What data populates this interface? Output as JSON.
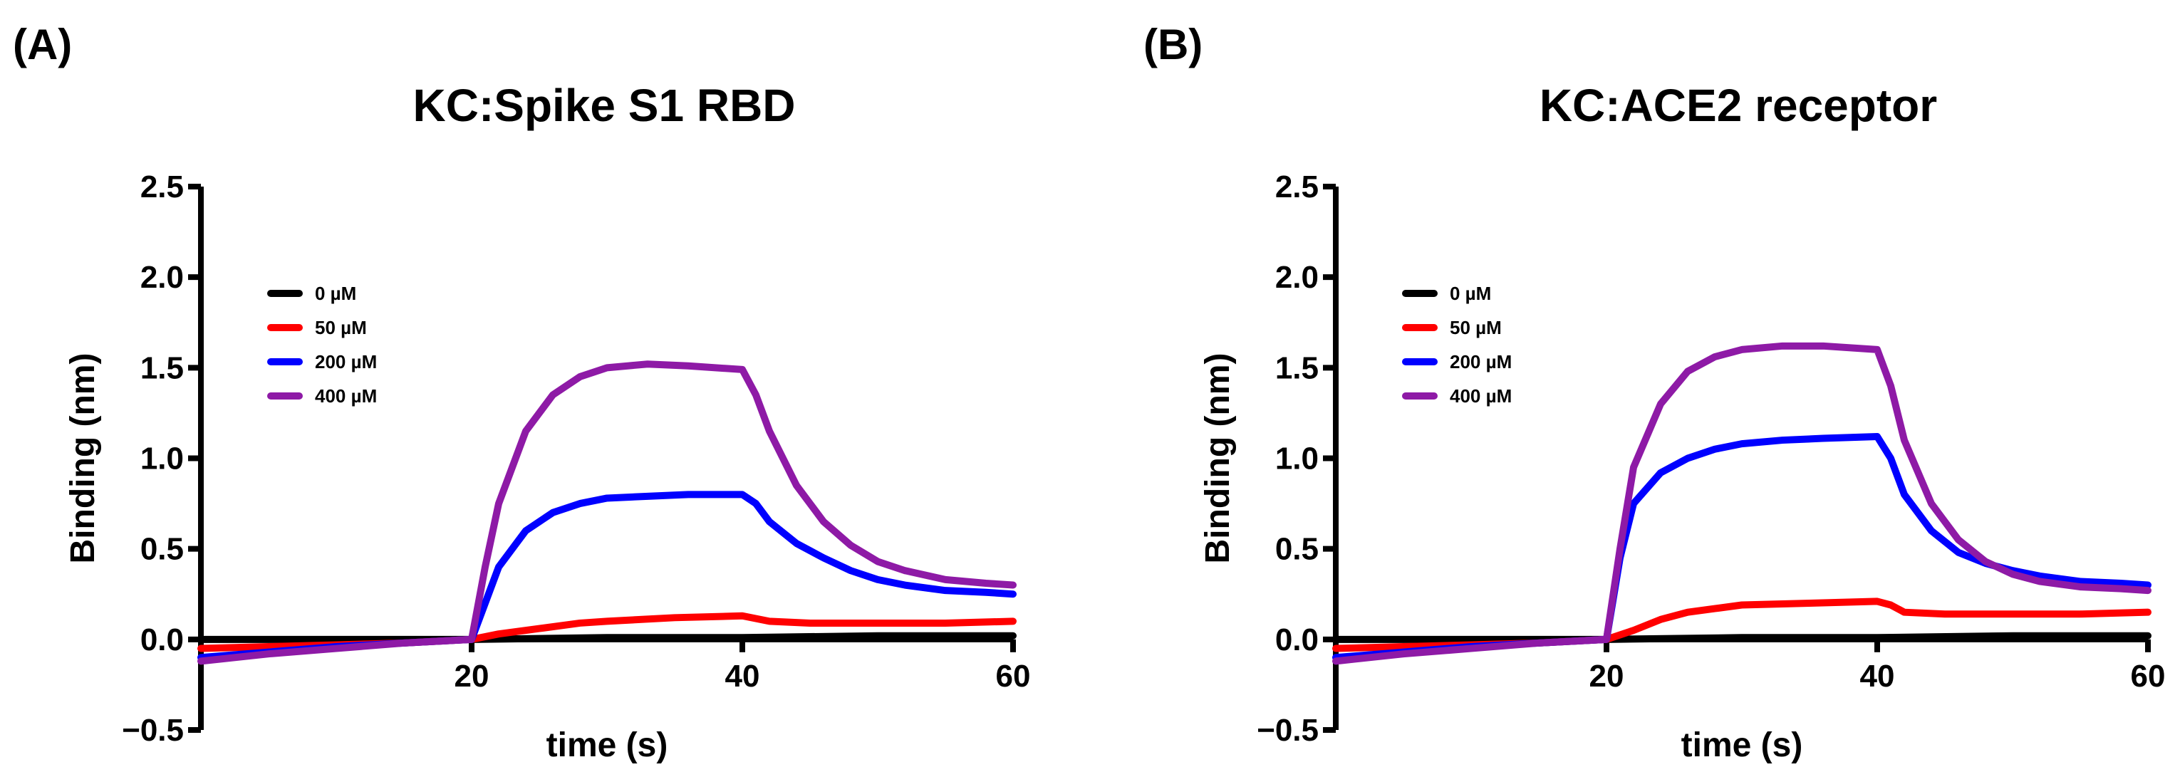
{
  "panel_labels": [
    "(A)",
    "(B)"
  ],
  "colors": {
    "0 µM": "#000000",
    "50 µM": "#ff0000",
    "200 µM": "#0000ff",
    "400 µM": "#8e1aa6"
  },
  "chart_data": [
    {
      "type": "line",
      "title": "KC:Spike S1 RBD",
      "xlabel": "time (s)",
      "ylabel": "Binding (nm)",
      "xlim": [
        0,
        60
      ],
      "ylim": [
        -0.5,
        2.5
      ],
      "xticks": [
        20,
        40,
        60
      ],
      "yticks": [
        -0.5,
        0.0,
        0.5,
        1.0,
        1.5,
        2.0,
        2.5
      ],
      "ytick_labels": [
        "−0.5",
        "0.0",
        "0.5",
        "1.0",
        "1.5",
        "2.0",
        "2.5"
      ],
      "legend": "top-left",
      "series": [
        {
          "name": "0 µM",
          "x": [
            0,
            10,
            20,
            30,
            40,
            50,
            60
          ],
          "y": [
            0.0,
            0.0,
            0.0,
            0.01,
            0.01,
            0.02,
            0.02
          ]
        },
        {
          "name": "50 µM",
          "x": [
            0,
            5,
            10,
            15,
            20,
            22,
            25,
            28,
            30,
            35,
            40,
            42,
            45,
            50,
            55,
            60
          ],
          "y": [
            -0.05,
            -0.04,
            -0.03,
            -0.02,
            0.0,
            0.03,
            0.06,
            0.09,
            0.1,
            0.12,
            0.13,
            0.1,
            0.09,
            0.09,
            0.09,
            0.1
          ]
        },
        {
          "name": "200 µM",
          "x": [
            0,
            5,
            10,
            15,
            20,
            21,
            22,
            24,
            26,
            28,
            30,
            33,
            36,
            40,
            41,
            42,
            44,
            46,
            48,
            50,
            52,
            55,
            58,
            60
          ],
          "y": [
            -0.1,
            -0.07,
            -0.04,
            -0.02,
            0.0,
            0.2,
            0.4,
            0.6,
            0.7,
            0.75,
            0.78,
            0.79,
            0.8,
            0.8,
            0.75,
            0.65,
            0.53,
            0.45,
            0.38,
            0.33,
            0.3,
            0.27,
            0.26,
            0.25
          ]
        },
        {
          "name": "400 µM",
          "x": [
            0,
            5,
            10,
            15,
            20,
            21,
            22,
            24,
            26,
            28,
            30,
            33,
            36,
            40,
            41,
            42,
            44,
            46,
            48,
            50,
            52,
            55,
            58,
            60
          ],
          "y": [
            -0.12,
            -0.08,
            -0.05,
            -0.02,
            0.0,
            0.4,
            0.75,
            1.15,
            1.35,
            1.45,
            1.5,
            1.52,
            1.51,
            1.49,
            1.35,
            1.15,
            0.85,
            0.65,
            0.52,
            0.43,
            0.38,
            0.33,
            0.31,
            0.3
          ]
        }
      ]
    },
    {
      "type": "line",
      "title": "KC:ACE2 receptor",
      "xlabel": "time (s)",
      "ylabel": "Binding (nm)",
      "xlim": [
        0,
        60
      ],
      "ylim": [
        -0.5,
        2.5
      ],
      "xticks": [
        20,
        40,
        60
      ],
      "yticks": [
        -0.5,
        0.0,
        0.5,
        1.0,
        1.5,
        2.0,
        2.5
      ],
      "ytick_labels": [
        "−0.5",
        "0.0",
        "0.5",
        "1.0",
        "1.5",
        "2.0",
        "2.5"
      ],
      "legend": "top-left",
      "series": [
        {
          "name": "0 µM",
          "x": [
            0,
            10,
            20,
            30,
            40,
            50,
            60
          ],
          "y": [
            0.0,
            0.0,
            0.0,
            0.01,
            0.01,
            0.02,
            0.02
          ]
        },
        {
          "name": "50 µM",
          "x": [
            0,
            5,
            10,
            15,
            20,
            22,
            24,
            26,
            28,
            30,
            35,
            40,
            41,
            42,
            45,
            50,
            55,
            60
          ],
          "y": [
            -0.05,
            -0.04,
            -0.03,
            -0.02,
            0.0,
            0.05,
            0.11,
            0.15,
            0.17,
            0.19,
            0.2,
            0.21,
            0.19,
            0.15,
            0.14,
            0.14,
            0.14,
            0.15
          ]
        },
        {
          "name": "200 µM",
          "x": [
            0,
            5,
            10,
            15,
            20,
            21,
            22,
            24,
            26,
            28,
            30,
            33,
            36,
            40,
            41,
            42,
            44,
            46,
            48,
            50,
            52,
            55,
            58,
            60
          ],
          "y": [
            -0.1,
            -0.07,
            -0.04,
            -0.02,
            0.0,
            0.45,
            0.75,
            0.92,
            1.0,
            1.05,
            1.08,
            1.1,
            1.11,
            1.12,
            1.0,
            0.8,
            0.6,
            0.48,
            0.42,
            0.38,
            0.35,
            0.32,
            0.31,
            0.3
          ]
        },
        {
          "name": "400 µM",
          "x": [
            0,
            5,
            10,
            15,
            20,
            21,
            22,
            24,
            26,
            28,
            30,
            33,
            36,
            40,
            41,
            42,
            44,
            46,
            48,
            50,
            52,
            55,
            58,
            60
          ],
          "y": [
            -0.12,
            -0.08,
            -0.05,
            -0.02,
            0.0,
            0.5,
            0.95,
            1.3,
            1.48,
            1.56,
            1.6,
            1.62,
            1.62,
            1.6,
            1.4,
            1.1,
            0.75,
            0.55,
            0.43,
            0.36,
            0.32,
            0.29,
            0.28,
            0.27
          ]
        }
      ]
    }
  ]
}
